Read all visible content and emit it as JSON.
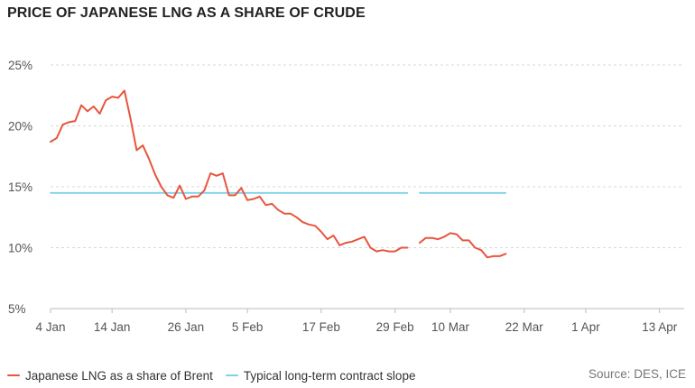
{
  "title": "PRICE OF JAPANESE LNG AS A SHARE OF CRUDE",
  "source": "Source: DES, ICE",
  "colors": {
    "lng": "#e8553d",
    "contract": "#7dd3e8",
    "grid": "#d8d8d8",
    "axis": "#bbbbbb"
  },
  "chart_data": {
    "type": "line",
    "title": "PRICE OF JAPANESE LNG AS A SHARE OF CRUDE",
    "xlabel": "",
    "ylabel": "",
    "ylim": [
      5,
      25
    ],
    "xlim": [
      "2021-01-04",
      "2021-04-17"
    ],
    "y_ticks": [
      5,
      10,
      15,
      20,
      25
    ],
    "y_tick_labels": [
      "5%",
      "10%",
      "15%",
      "20%",
      "25%"
    ],
    "x_ticks": [
      "2021-01-04",
      "2021-01-14",
      "2021-01-26",
      "2021-02-05",
      "2021-02-17",
      "2021-03-01",
      "2021-03-10",
      "2021-03-22",
      "2021-04-01",
      "2021-04-13"
    ],
    "x_tick_labels": [
      "4 Jan",
      "14 Jan",
      "26 Jan",
      "5 Feb",
      "17 Feb",
      "29 Feb",
      "10 Mar",
      "22 Mar",
      "1 Apr",
      "13 Apr"
    ],
    "grid": true,
    "legend_position": "bottom-left",
    "series": [
      {
        "name": "Japanese LNG as a share of Brent",
        "color": "#e8553d",
        "segments": [
          [
            [
              "2021-01-04",
              18.7
            ],
            [
              "2021-01-05",
              19.0
            ],
            [
              "2021-01-06",
              20.1
            ],
            [
              "2021-01-07",
              20.3
            ],
            [
              "2021-01-08",
              20.4
            ],
            [
              "2021-01-09",
              21.7
            ],
            [
              "2021-01-10",
              21.2
            ],
            [
              "2021-01-11",
              21.6
            ],
            [
              "2021-01-12",
              21.0
            ],
            [
              "2021-01-13",
              22.1
            ],
            [
              "2021-01-14",
              22.4
            ],
            [
              "2021-01-15",
              22.3
            ],
            [
              "2021-01-16",
              22.9
            ],
            [
              "2021-01-17",
              20.6
            ],
            [
              "2021-01-18",
              18.0
            ],
            [
              "2021-01-19",
              18.4
            ],
            [
              "2021-01-20",
              17.3
            ],
            [
              "2021-01-21",
              16.0
            ],
            [
              "2021-01-22",
              15.0
            ],
            [
              "2021-01-23",
              14.3
            ],
            [
              "2021-01-24",
              14.1
            ],
            [
              "2021-01-25",
              15.1
            ],
            [
              "2021-01-26",
              14.0
            ],
            [
              "2021-01-27",
              14.2
            ],
            [
              "2021-01-28",
              14.2
            ],
            [
              "2021-01-29",
              14.7
            ],
            [
              "2021-01-30",
              16.1
            ],
            [
              "2021-01-31",
              15.9
            ],
            [
              "2021-02-01",
              16.1
            ],
            [
              "2021-02-02",
              14.3
            ],
            [
              "2021-02-03",
              14.3
            ],
            [
              "2021-02-04",
              14.9
            ],
            [
              "2021-02-05",
              13.9
            ],
            [
              "2021-02-06",
              14.0
            ],
            [
              "2021-02-07",
              14.2
            ],
            [
              "2021-02-08",
              13.5
            ],
            [
              "2021-02-09",
              13.6
            ],
            [
              "2021-02-10",
              13.1
            ],
            [
              "2021-02-11",
              12.8
            ],
            [
              "2021-02-12",
              12.8
            ],
            [
              "2021-02-13",
              12.5
            ],
            [
              "2021-02-14",
              12.1
            ],
            [
              "2021-02-15",
              11.9
            ],
            [
              "2021-02-16",
              11.8
            ],
            [
              "2021-02-17",
              11.3
            ],
            [
              "2021-02-18",
              10.7
            ],
            [
              "2021-02-19",
              11.0
            ],
            [
              "2021-02-20",
              10.2
            ],
            [
              "2021-02-21",
              10.4
            ],
            [
              "2021-02-22",
              10.5
            ],
            [
              "2021-02-23",
              10.7
            ],
            [
              "2021-02-24",
              10.9
            ],
            [
              "2021-02-25",
              10.0
            ],
            [
              "2021-02-26",
              9.7
            ],
            [
              "2021-02-27",
              9.8
            ],
            [
              "2021-02-28",
              9.7
            ],
            [
              "2021-03-01",
              9.7
            ],
            [
              "2021-03-02",
              10.0
            ],
            [
              "2021-03-03",
              10.0
            ]
          ],
          [
            [
              "2021-03-05",
              10.4
            ],
            [
              "2021-03-06",
              10.8
            ],
            [
              "2021-03-07",
              10.8
            ],
            [
              "2021-03-08",
              10.7
            ],
            [
              "2021-03-09",
              10.9
            ],
            [
              "2021-03-10",
              11.2
            ],
            [
              "2021-03-11",
              11.1
            ],
            [
              "2021-03-12",
              10.6
            ],
            [
              "2021-03-13",
              10.6
            ],
            [
              "2021-03-14",
              10.0
            ],
            [
              "2021-03-15",
              9.8
            ],
            [
              "2021-03-16",
              9.2
            ],
            [
              "2021-03-17",
              9.3
            ],
            [
              "2021-03-18",
              9.3
            ],
            [
              "2021-03-19",
              9.5
            ]
          ]
        ]
      },
      {
        "name": "Typical long-term contract slope",
        "color": "#7dd3e8",
        "segments": [
          [
            [
              "2021-01-04",
              14.5
            ],
            [
              "2021-03-03",
              14.5
            ]
          ],
          [
            [
              "2021-03-05",
              14.5
            ],
            [
              "2021-03-19",
              14.5
            ]
          ]
        ]
      }
    ]
  }
}
